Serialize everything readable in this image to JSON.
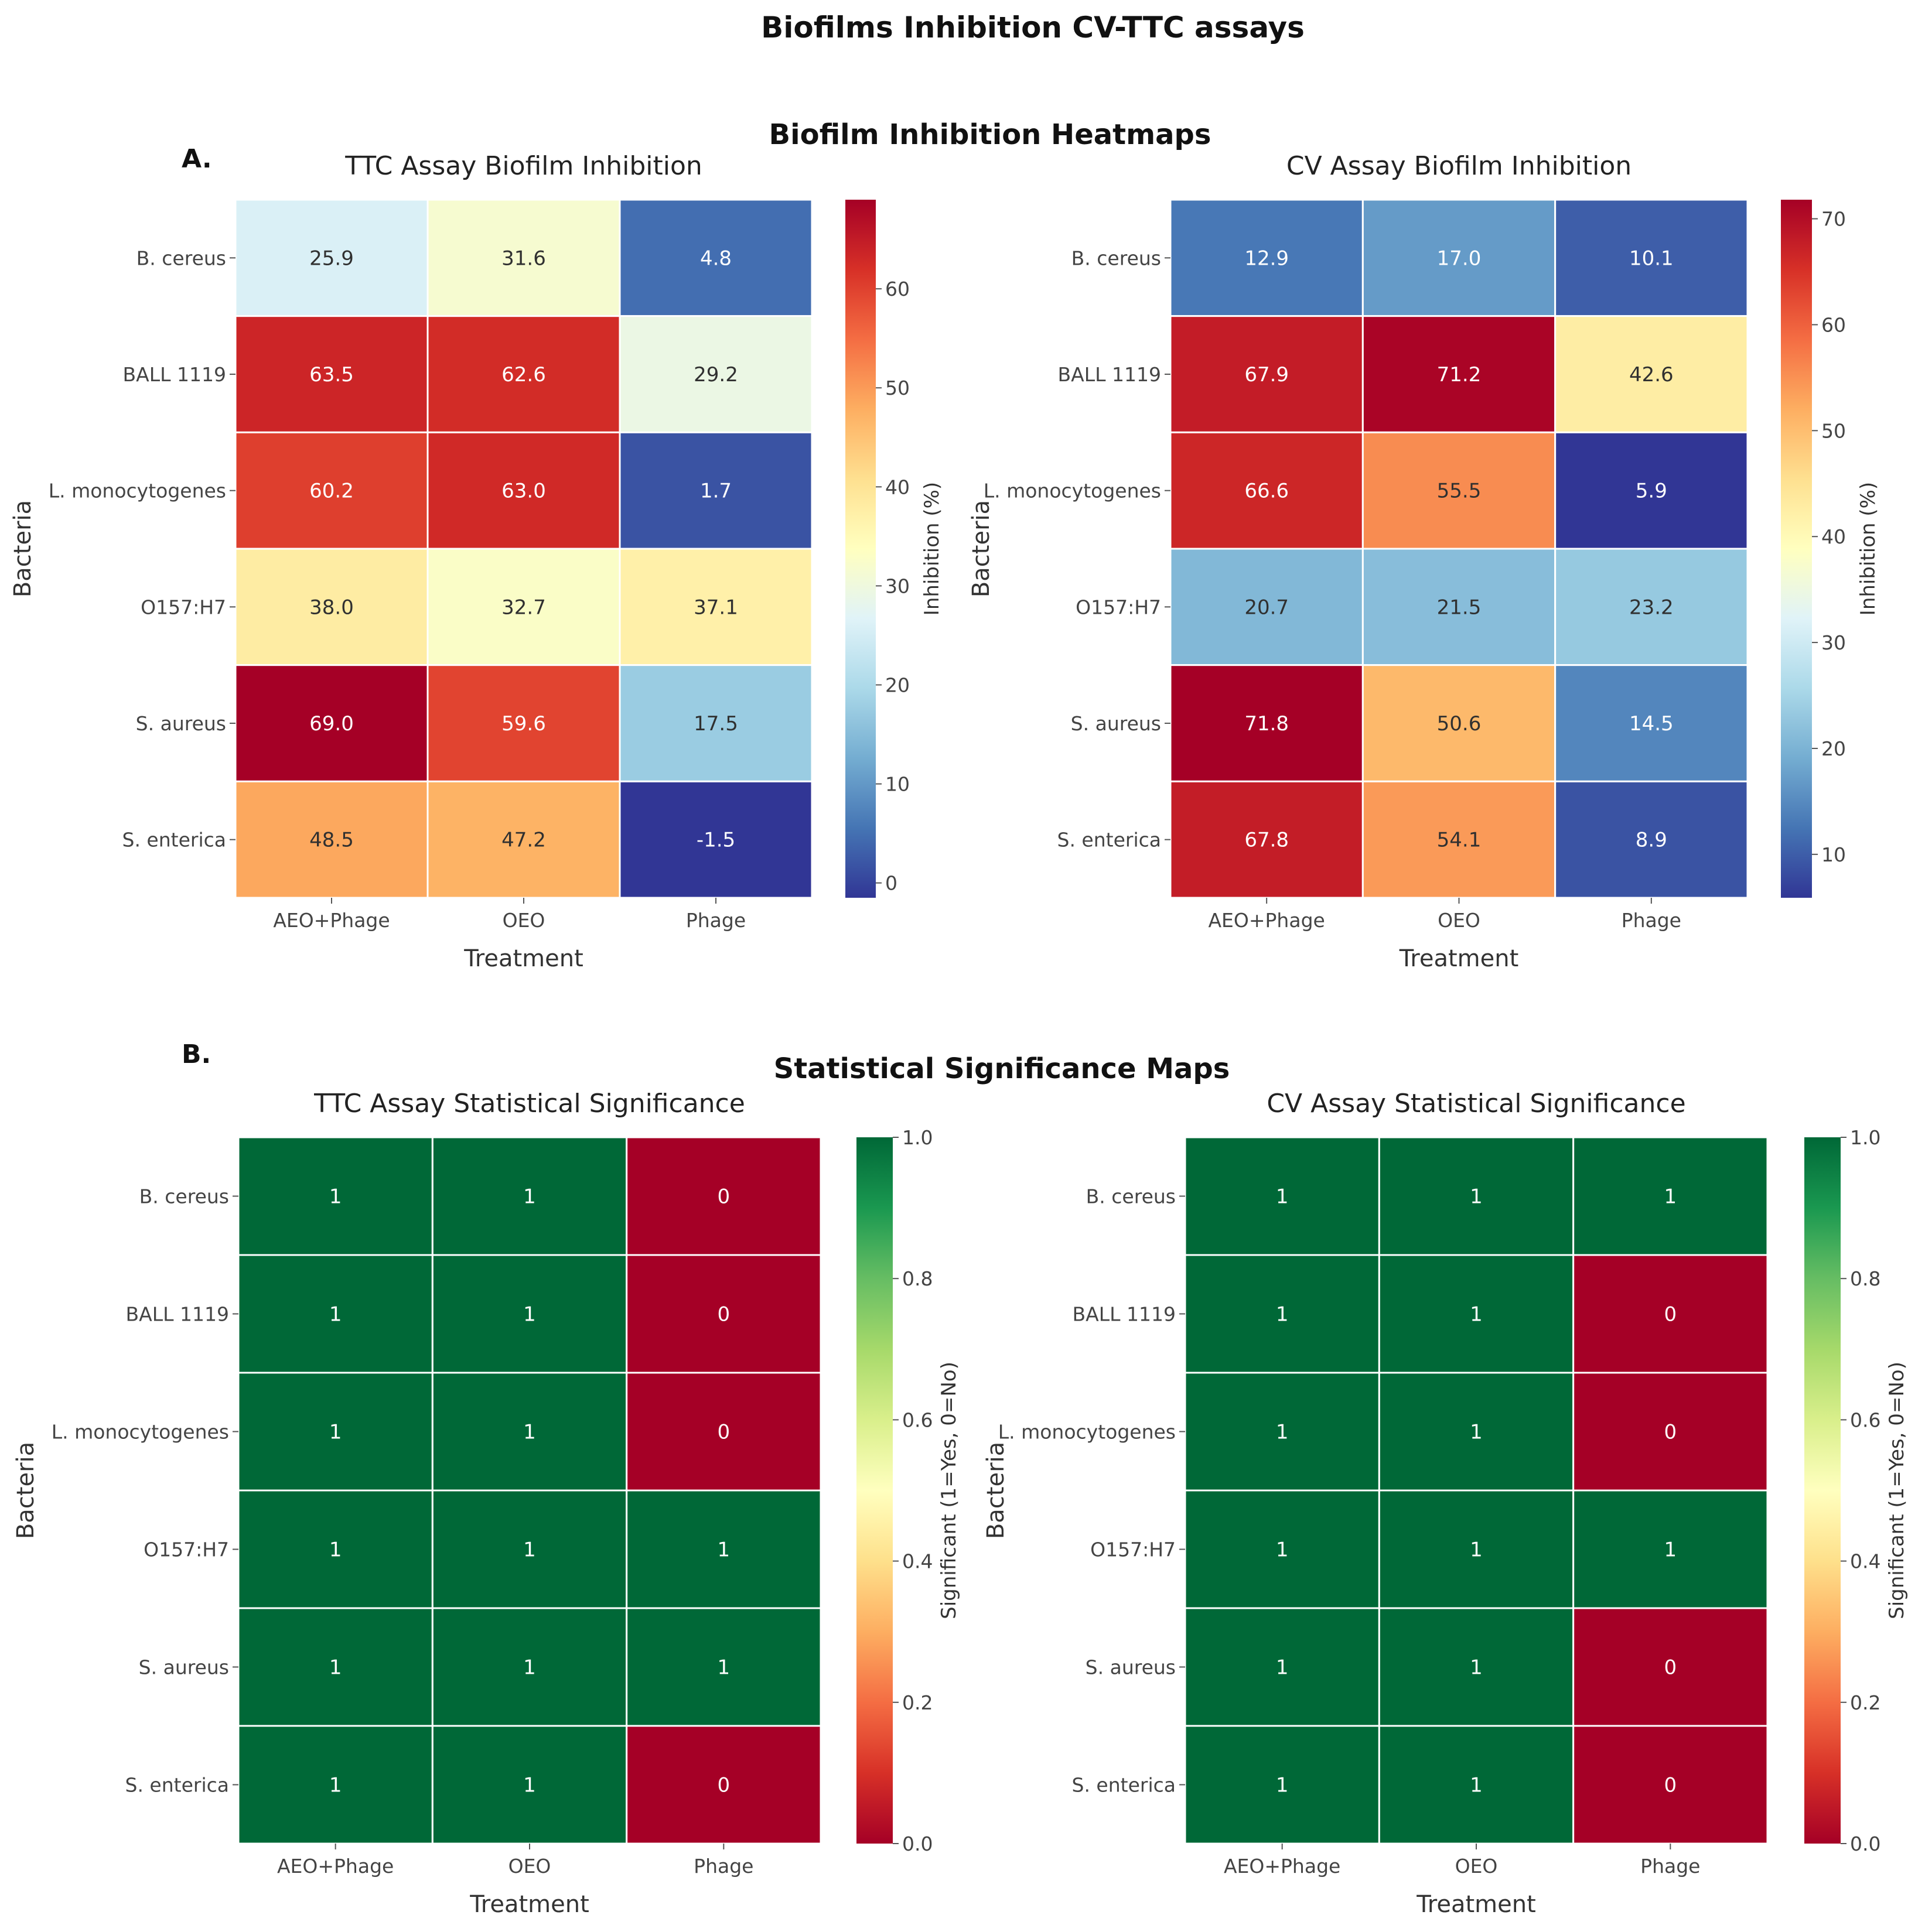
{
  "title": "Biofilms Inhibition CV-TTC assays",
  "sections": [
    {
      "label": "A.",
      "subtitle": "Biofilm Inhibition Heatmaps"
    },
    {
      "label": "B.",
      "subtitle": "Statistical Significance Maps"
    }
  ],
  "chart_data": [
    {
      "type": "heatmap",
      "title": "TTC Assay Biofilm Inhibition",
      "xlabel": "Treatment",
      "ylabel": "Bacteria",
      "x_categories": [
        "AEO+Phage",
        "OEO",
        "Phage"
      ],
      "y_categories": [
        "B. cereus",
        "BALL 1119",
        "L. monocytogenes",
        "O157:H7",
        "S. aureus",
        "S. enterica"
      ],
      "values": [
        [
          25.9,
          31.6,
          4.8
        ],
        [
          63.5,
          62.6,
          29.2
        ],
        [
          60.2,
          63.0,
          1.7
        ],
        [
          38.0,
          32.7,
          37.1
        ],
        [
          69.0,
          59.6,
          17.5
        ],
        [
          48.5,
          47.2,
          -1.5
        ]
      ],
      "value_format": 1,
      "colormap": "RdYlBu_r",
      "vmin": -1.5,
      "vmax": 69.0,
      "colorbar_label": "Inhibition (%)",
      "colorbar_ticks": [
        0,
        10,
        20,
        30,
        40,
        50,
        60
      ]
    },
    {
      "type": "heatmap",
      "title": "CV Assay Biofilm Inhibition",
      "xlabel": "Treatment",
      "ylabel": "Bacteria",
      "x_categories": [
        "AEO+Phage",
        "OEO",
        "Phage"
      ],
      "y_categories": [
        "B. cereus",
        "BALL 1119",
        "L. monocytogenes",
        "O157:H7",
        "S. aureus",
        "S. enterica"
      ],
      "values": [
        [
          12.9,
          17.0,
          10.1
        ],
        [
          67.9,
          71.2,
          42.6
        ],
        [
          66.6,
          55.5,
          5.9
        ],
        [
          20.7,
          21.5,
          23.2
        ],
        [
          71.8,
          50.6,
          14.5
        ],
        [
          67.8,
          54.1,
          8.9
        ]
      ],
      "value_format": 1,
      "colormap": "RdYlBu_r",
      "vmin": 5.9,
      "vmax": 71.8,
      "colorbar_label": "Inhibition (%)",
      "colorbar_ticks": [
        10,
        20,
        30,
        40,
        50,
        60,
        70
      ]
    },
    {
      "type": "heatmap",
      "title": "TTC Assay Statistical Significance",
      "xlabel": "Treatment",
      "ylabel": "Bacteria",
      "x_categories": [
        "AEO+Phage",
        "OEO",
        "Phage"
      ],
      "y_categories": [
        "B. cereus",
        "BALL 1119",
        "L. monocytogenes",
        "O157:H7",
        "S. aureus",
        "S. enterica"
      ],
      "values": [
        [
          1,
          1,
          0
        ],
        [
          1,
          1,
          0
        ],
        [
          1,
          1,
          0
        ],
        [
          1,
          1,
          1
        ],
        [
          1,
          1,
          1
        ],
        [
          1,
          1,
          0
        ]
      ],
      "value_format": 0,
      "colormap": "RdYlGn",
      "vmin": 0,
      "vmax": 1,
      "colorbar_label": "Significant (1=Yes, 0=No)",
      "colorbar_ticks": [
        0.0,
        0.2,
        0.4,
        0.6,
        0.8,
        1.0
      ]
    },
    {
      "type": "heatmap",
      "title": "CV Assay Statistical Significance",
      "xlabel": "Treatment",
      "ylabel": "Bacteria",
      "x_categories": [
        "AEO+Phage",
        "OEO",
        "Phage"
      ],
      "y_categories": [
        "B. cereus",
        "BALL 1119",
        "L. monocytogenes",
        "O157:H7",
        "S. aureus",
        "S. enterica"
      ],
      "values": [
        [
          1,
          1,
          1
        ],
        [
          1,
          1,
          0
        ],
        [
          1,
          1,
          0
        ],
        [
          1,
          1,
          1
        ],
        [
          1,
          1,
          0
        ],
        [
          1,
          1,
          0
        ]
      ],
      "value_format": 0,
      "colormap": "RdYlGn",
      "vmin": 0,
      "vmax": 1,
      "colorbar_label": "Significant (1=Yes, 0=No)",
      "colorbar_ticks": [
        0.0,
        0.2,
        0.4,
        0.6,
        0.8,
        1.0
      ]
    }
  ]
}
